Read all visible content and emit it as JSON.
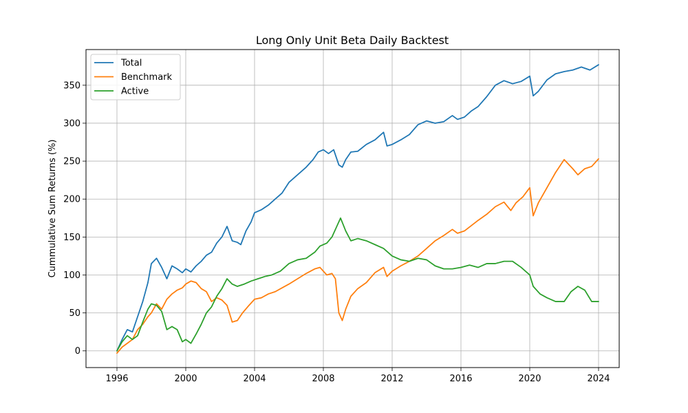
{
  "chart_data": {
    "type": "line",
    "title": "Long Only Unit Beta Daily Backtest",
    "xlabel": "",
    "ylabel": "Cummulative Sum Returns (%)",
    "xlim": [
      1994.2,
      2025.2
    ],
    "ylim": [
      -22,
      397
    ],
    "xticks": [
      1996,
      2000,
      2004,
      2008,
      2012,
      2016,
      2020,
      2024
    ],
    "yticks": [
      0,
      50,
      100,
      150,
      200,
      250,
      300,
      350
    ],
    "grid": true,
    "legend_position": "upper-left",
    "series": [
      {
        "name": "Total",
        "color": "#1f77b4",
        "points": [
          [
            1996.0,
            0
          ],
          [
            1996.3,
            15
          ],
          [
            1996.6,
            28
          ],
          [
            1996.9,
            25
          ],
          [
            1997.2,
            45
          ],
          [
            1997.5,
            65
          ],
          [
            1997.8,
            90
          ],
          [
            1998.0,
            115
          ],
          [
            1998.3,
            122
          ],
          [
            1998.6,
            110
          ],
          [
            1998.9,
            95
          ],
          [
            1999.2,
            112
          ],
          [
            1999.5,
            108
          ],
          [
            1999.8,
            103
          ],
          [
            2000.0,
            108
          ],
          [
            2000.3,
            104
          ],
          [
            2000.6,
            112
          ],
          [
            2000.9,
            118
          ],
          [
            2001.2,
            126
          ],
          [
            2001.5,
            130
          ],
          [
            2001.8,
            142
          ],
          [
            2002.1,
            150
          ],
          [
            2002.4,
            164
          ],
          [
            2002.7,
            145
          ],
          [
            2003.0,
            143
          ],
          [
            2003.2,
            140
          ],
          [
            2003.5,
            158
          ],
          [
            2003.8,
            170
          ],
          [
            2004.0,
            182
          ],
          [
            2004.4,
            186
          ],
          [
            2004.8,
            192
          ],
          [
            2005.2,
            200
          ],
          [
            2005.6,
            208
          ],
          [
            2006.0,
            222
          ],
          [
            2006.5,
            232
          ],
          [
            2007.0,
            242
          ],
          [
            2007.4,
            252
          ],
          [
            2007.7,
            262
          ],
          [
            2008.0,
            265
          ],
          [
            2008.3,
            260
          ],
          [
            2008.6,
            265
          ],
          [
            2008.9,
            245
          ],
          [
            2009.1,
            242
          ],
          [
            2009.3,
            252
          ],
          [
            2009.6,
            262
          ],
          [
            2010.0,
            263
          ],
          [
            2010.5,
            272
          ],
          [
            2011.0,
            278
          ],
          [
            2011.5,
            288
          ],
          [
            2011.7,
            270
          ],
          [
            2012.0,
            272
          ],
          [
            2012.5,
            278
          ],
          [
            2013.0,
            285
          ],
          [
            2013.5,
            298
          ],
          [
            2014.0,
            303
          ],
          [
            2014.5,
            300
          ],
          [
            2015.0,
            302
          ],
          [
            2015.5,
            310
          ],
          [
            2015.8,
            305
          ],
          [
            2016.2,
            308
          ],
          [
            2016.6,
            316
          ],
          [
            2017.0,
            322
          ],
          [
            2017.5,
            335
          ],
          [
            2018.0,
            350
          ],
          [
            2018.5,
            356
          ],
          [
            2019.0,
            352
          ],
          [
            2019.5,
            355
          ],
          [
            2020.0,
            362
          ],
          [
            2020.2,
            336
          ],
          [
            2020.5,
            342
          ],
          [
            2021.0,
            357
          ],
          [
            2021.5,
            365
          ],
          [
            2022.0,
            368
          ],
          [
            2022.5,
            370
          ],
          [
            2023.0,
            374
          ],
          [
            2023.5,
            370
          ],
          [
            2024.0,
            377
          ]
        ]
      },
      {
        "name": "Benchmark",
        "color": "#ff7f0e",
        "points": [
          [
            1996.0,
            -3
          ],
          [
            1996.3,
            5
          ],
          [
            1996.6,
            10
          ],
          [
            1996.9,
            15
          ],
          [
            1997.2,
            28
          ],
          [
            1997.5,
            35
          ],
          [
            1997.8,
            45
          ],
          [
            1998.0,
            50
          ],
          [
            1998.3,
            62
          ],
          [
            1998.6,
            55
          ],
          [
            1998.9,
            68
          ],
          [
            1999.2,
            75
          ],
          [
            1999.5,
            80
          ],
          [
            1999.8,
            83
          ],
          [
            2000.0,
            88
          ],
          [
            2000.3,
            92
          ],
          [
            2000.6,
            90
          ],
          [
            2000.9,
            82
          ],
          [
            2001.2,
            78
          ],
          [
            2001.5,
            65
          ],
          [
            2001.8,
            70
          ],
          [
            2002.1,
            67
          ],
          [
            2002.4,
            60
          ],
          [
            2002.7,
            38
          ],
          [
            2003.0,
            40
          ],
          [
            2003.3,
            50
          ],
          [
            2003.6,
            58
          ],
          [
            2004.0,
            68
          ],
          [
            2004.4,
            70
          ],
          [
            2004.8,
            75
          ],
          [
            2005.2,
            78
          ],
          [
            2005.6,
            83
          ],
          [
            2006.0,
            88
          ],
          [
            2006.5,
            95
          ],
          [
            2007.0,
            102
          ],
          [
            2007.5,
            108
          ],
          [
            2007.8,
            110
          ],
          [
            2008.2,
            100
          ],
          [
            2008.5,
            102
          ],
          [
            2008.7,
            95
          ],
          [
            2008.9,
            50
          ],
          [
            2009.1,
            40
          ],
          [
            2009.3,
            55
          ],
          [
            2009.6,
            72
          ],
          [
            2010.0,
            82
          ],
          [
            2010.5,
            90
          ],
          [
            2011.0,
            103
          ],
          [
            2011.5,
            110
          ],
          [
            2011.7,
            98
          ],
          [
            2012.0,
            105
          ],
          [
            2012.5,
            112
          ],
          [
            2013.0,
            118
          ],
          [
            2013.5,
            125
          ],
          [
            2014.0,
            135
          ],
          [
            2014.5,
            145
          ],
          [
            2015.0,
            152
          ],
          [
            2015.5,
            160
          ],
          [
            2015.8,
            155
          ],
          [
            2016.2,
            158
          ],
          [
            2016.6,
            165
          ],
          [
            2017.0,
            172
          ],
          [
            2017.5,
            180
          ],
          [
            2018.0,
            190
          ],
          [
            2018.5,
            196
          ],
          [
            2018.9,
            185
          ],
          [
            2019.2,
            195
          ],
          [
            2019.6,
            203
          ],
          [
            2020.0,
            215
          ],
          [
            2020.2,
            178
          ],
          [
            2020.5,
            195
          ],
          [
            2021.0,
            215
          ],
          [
            2021.5,
            235
          ],
          [
            2022.0,
            252
          ],
          [
            2022.5,
            240
          ],
          [
            2022.8,
            232
          ],
          [
            2023.2,
            240
          ],
          [
            2023.6,
            243
          ],
          [
            2024.0,
            253
          ]
        ]
      },
      {
        "name": "Active",
        "color": "#2ca02c",
        "points": [
          [
            1996.0,
            0
          ],
          [
            1996.3,
            12
          ],
          [
            1996.6,
            20
          ],
          [
            1996.9,
            15
          ],
          [
            1997.2,
            20
          ],
          [
            1997.5,
            38
          ],
          [
            1997.8,
            55
          ],
          [
            1998.0,
            62
          ],
          [
            1998.3,
            60
          ],
          [
            1998.6,
            52
          ],
          [
            1998.9,
            28
          ],
          [
            1999.2,
            32
          ],
          [
            1999.5,
            28
          ],
          [
            1999.8,
            12
          ],
          [
            2000.0,
            15
          ],
          [
            2000.3,
            10
          ],
          [
            2000.6,
            22
          ],
          [
            2000.9,
            35
          ],
          [
            2001.2,
            50
          ],
          [
            2001.5,
            58
          ],
          [
            2001.8,
            72
          ],
          [
            2002.1,
            82
          ],
          [
            2002.4,
            95
          ],
          [
            2002.7,
            88
          ],
          [
            2003.0,
            85
          ],
          [
            2003.4,
            88
          ],
          [
            2003.8,
            92
          ],
          [
            2004.2,
            95
          ],
          [
            2004.6,
            98
          ],
          [
            2005.0,
            100
          ],
          [
            2005.5,
            105
          ],
          [
            2006.0,
            115
          ],
          [
            2006.5,
            120
          ],
          [
            2007.0,
            122
          ],
          [
            2007.5,
            130
          ],
          [
            2007.8,
            138
          ],
          [
            2008.2,
            142
          ],
          [
            2008.5,
            150
          ],
          [
            2008.8,
            165
          ],
          [
            2009.0,
            175
          ],
          [
            2009.3,
            158
          ],
          [
            2009.6,
            145
          ],
          [
            2010.0,
            148
          ],
          [
            2010.5,
            145
          ],
          [
            2011.0,
            140
          ],
          [
            2011.5,
            135
          ],
          [
            2012.0,
            125
          ],
          [
            2012.5,
            120
          ],
          [
            2013.0,
            118
          ],
          [
            2013.5,
            122
          ],
          [
            2014.0,
            120
          ],
          [
            2014.5,
            112
          ],
          [
            2015.0,
            108
          ],
          [
            2015.5,
            108
          ],
          [
            2016.0,
            110
          ],
          [
            2016.5,
            113
          ],
          [
            2017.0,
            110
          ],
          [
            2017.5,
            115
          ],
          [
            2018.0,
            115
          ],
          [
            2018.5,
            118
          ],
          [
            2019.0,
            118
          ],
          [
            2019.5,
            110
          ],
          [
            2020.0,
            100
          ],
          [
            2020.2,
            85
          ],
          [
            2020.6,
            75
          ],
          [
            2021.0,
            70
          ],
          [
            2021.5,
            65
          ],
          [
            2022.0,
            65
          ],
          [
            2022.4,
            78
          ],
          [
            2022.8,
            85
          ],
          [
            2023.2,
            80
          ],
          [
            2023.6,
            65
          ],
          [
            2024.0,
            65
          ]
        ]
      }
    ]
  }
}
